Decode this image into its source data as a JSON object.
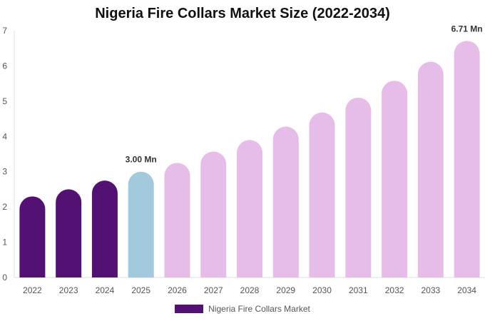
{
  "chart_data": {
    "type": "bar",
    "title": "Nigeria Fire Collars Market Size (2022-2034)",
    "categories": [
      "2022",
      "2023",
      "2024",
      "2025",
      "2026",
      "2027",
      "2028",
      "2029",
      "2030",
      "2031",
      "2032",
      "2033",
      "2034"
    ],
    "series": [
      {
        "name": "Nigeria Fire Collars Market",
        "values": [
          2.3,
          2.5,
          2.75,
          3.0,
          3.25,
          3.57,
          3.9,
          4.28,
          4.68,
          5.1,
          5.58,
          6.12,
          6.71
        ]
      }
    ],
    "data_labels": {
      "3": "3.00 Mn",
      "12": "6.71 Mn"
    },
    "ylim": [
      0,
      7
    ],
    "yticks": [
      "0",
      "1",
      "2",
      "3",
      "4",
      "5",
      "6",
      "7"
    ],
    "grid": false,
    "legend_position": "bottom",
    "colors": {
      "historical": "#531273",
      "base_year": "#a3cadc",
      "forecast": "#e6bde8",
      "legend": "#531273"
    }
  }
}
